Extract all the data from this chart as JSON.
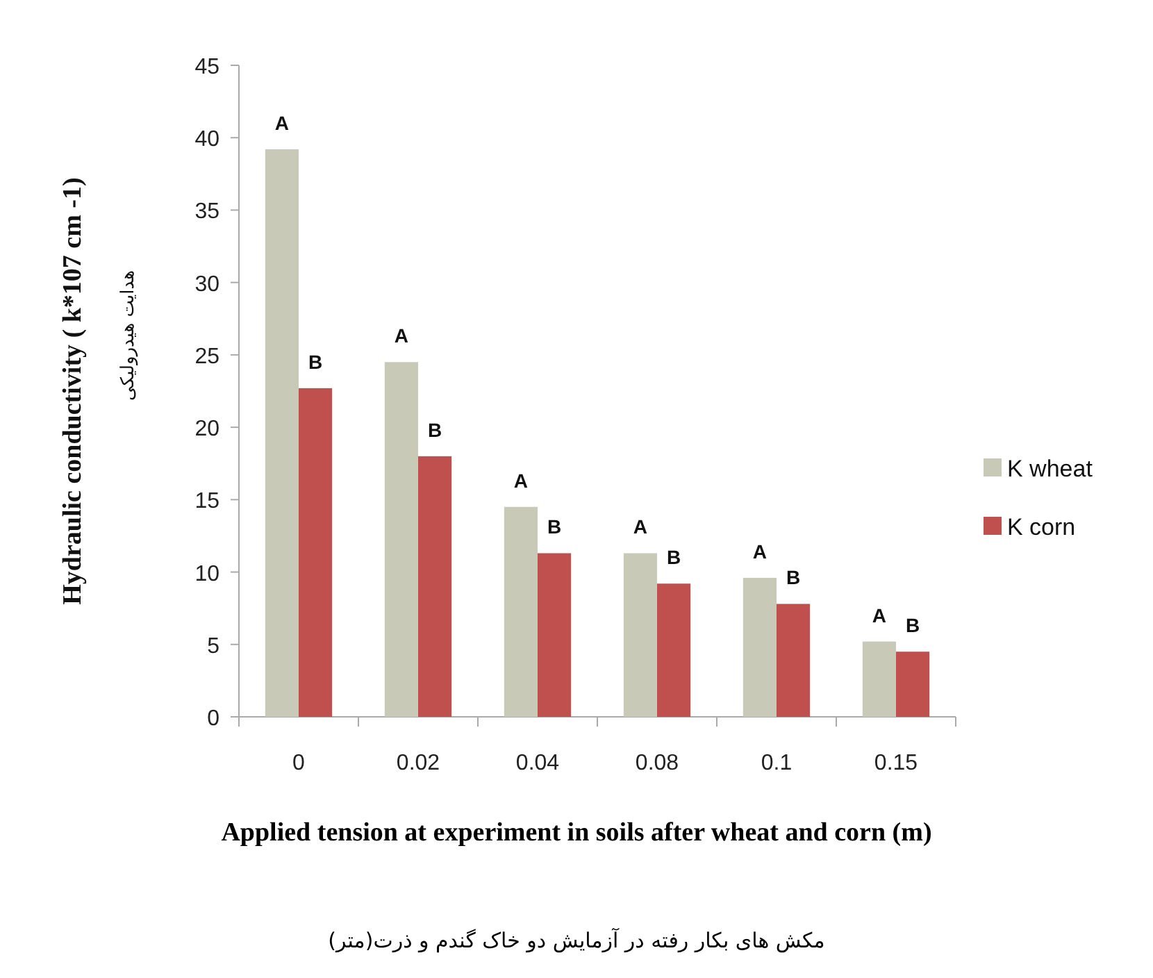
{
  "chart_data": {
    "type": "bar",
    "xlabel": "Applied  tension at experiment in soils after wheat and corn (m)",
    "ylabel": "Hydraulic conductivity ( k*107 cm -1)",
    "annotations": [
      "هدایت هیدرولیکی",
      "مکش های بکار رفته در آزمایش دو خاک گندم و ذرت(متر)"
    ],
    "categories": [
      "0",
      "0.02",
      "0.04",
      "0.08",
      "0.1",
      "0.15"
    ],
    "series": [
      {
        "name": "K wheat",
        "color": "#c9c9b8",
        "values": [
          39.2,
          24.5,
          14.5,
          11.3,
          9.6,
          5.2
        ],
        "value_labels": [
          "A",
          "A",
          "A",
          "A",
          "A",
          "A"
        ]
      },
      {
        "name": "K corn",
        "color": "#c0504d",
        "values": [
          22.7,
          18,
          11.3,
          9.2,
          7.8,
          4.5
        ],
        "value_labels": [
          "B",
          "B",
          "B",
          "B",
          "B",
          "B"
        ]
      }
    ],
    "ylim": [
      0,
      45
    ],
    "yticks": [
      0,
      5,
      10,
      15,
      20,
      25,
      30,
      35,
      40,
      45
    ],
    "grid": false,
    "legend": "right"
  }
}
